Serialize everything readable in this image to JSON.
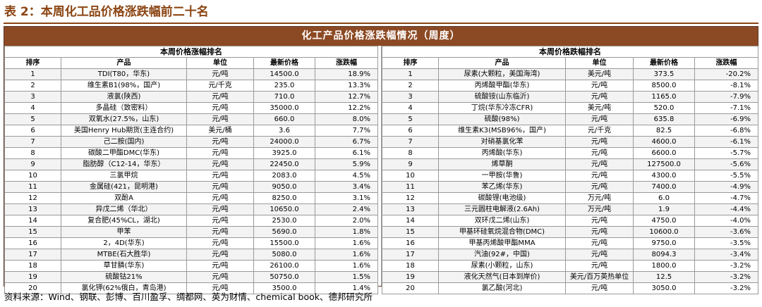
{
  "caption": "表 2：本周化工品价格涨跌幅前二十名",
  "table_title": "化工产品价格涨跌幅情况（周度）",
  "left": {
    "subtitle": "本周价格涨幅排名",
    "headers": [
      "排序",
      "产品",
      "单位",
      "最新价格",
      "涨跌幅"
    ],
    "rows": [
      [
        "1",
        "TDI(T80，华东)",
        "元/吨",
        "14500.0",
        "18.9%"
      ],
      [
        "2",
        "维生素B1(98%，国产)",
        "元/千克",
        "235.0",
        "13.3%"
      ],
      [
        "3",
        "液氯(陕西)",
        "元/吨",
        "710.0",
        "12.7%"
      ],
      [
        "4",
        "多晶硅（致密料）",
        "元/吨",
        "35000.0",
        "12.2%"
      ],
      [
        "5",
        "双氧水(27.5%，山东)",
        "元/吨",
        "660.0",
        "8.0%"
      ],
      [
        "6",
        "美国Henry Hub期货(主连合约)",
        "美元/桶",
        "3.6",
        "7.7%"
      ],
      [
        "7",
        "己二胺(国内)",
        "元/吨",
        "24000.0",
        "6.7%"
      ],
      [
        "8",
        "碳酸二甲酯DMC(华东)",
        "元/吨",
        "3925.0",
        "6.1%"
      ],
      [
        "9",
        "脂肪醇（C12-14，华东）",
        "元/吨",
        "22450.0",
        "5.9%"
      ],
      [
        "10",
        "三氯甲烷",
        "元/吨",
        "2083.0",
        "4.5%"
      ],
      [
        "11",
        "金属硅(421，昆明港)",
        "元/吨",
        "9050.0",
        "3.4%"
      ],
      [
        "12",
        "双酚A",
        "元/吨",
        "8250.0",
        "3.1%"
      ],
      [
        "13",
        "异戊二烯（华北）",
        "元/吨",
        "10650.0",
        "2.4%"
      ],
      [
        "14",
        "复合肥(45%CL，湖北)",
        "元/吨",
        "2530.0",
        "2.0%"
      ],
      [
        "15",
        "甲苯",
        "元/吨",
        "5690.0",
        "1.8%"
      ],
      [
        "16",
        "2，4D(华东)",
        "元/吨",
        "15500.0",
        "1.6%"
      ],
      [
        "17",
        "MTBE(石大胜华)",
        "元/吨",
        "5080.0",
        "1.6%"
      ],
      [
        "18",
        "草甘膦(华东)",
        "元/吨",
        "26100.0",
        "1.6%"
      ],
      [
        "19",
        "硫酸钴21%",
        "元/吨",
        "50750.0",
        "1.5%"
      ],
      [
        "20",
        "氯化钾(62%俄白，青岛港)",
        "元/吨",
        "3500.0",
        "1.4%"
      ]
    ]
  },
  "right": {
    "subtitle": "本周价格跌幅排名",
    "headers": [
      "排序",
      "产品",
      "单位",
      "最新价格",
      "涨跌幅"
    ],
    "rows": [
      [
        "1",
        "尿素(大颗粒，美国海湾)",
        "美元/吨",
        "373.5",
        "-20.2%"
      ],
      [
        "2",
        "丙烯酸甲酯(华东)",
        "元/吨",
        "8500.0",
        "-8.1%"
      ],
      [
        "3",
        "硫酸铵(山东临沂)",
        "元/吨",
        "1165.0",
        "-7.9%"
      ],
      [
        "4",
        "丁烷(华东冷冻CFR)",
        "美元/吨",
        "520.0",
        "-7.1%"
      ],
      [
        "5",
        "硫酸(98%)",
        "元/吨",
        "635.8",
        "-6.9%"
      ],
      [
        "6",
        "维生素K3(MSB96%，国产)",
        "元/千克",
        "82.5",
        "-6.8%"
      ],
      [
        "7",
        "对硝基氯化苯",
        "元/吨",
        "4600.0",
        "-6.1%"
      ],
      [
        "8",
        "丙烯酸(华东)",
        "元/吨",
        "6600.0",
        "-5.7%"
      ],
      [
        "9",
        "烯草酮",
        "元/吨",
        "127500.0",
        "-5.6%"
      ],
      [
        "10",
        "一甲胺(华鲁)",
        "元/吨",
        "4300.0",
        "-5.5%"
      ],
      [
        "11",
        "苯乙烯(华东)",
        "元/吨",
        "7400.0",
        "-4.9%"
      ],
      [
        "12",
        "碳酸锂(电池级)",
        "万元/吨",
        "6.0",
        "-4.7%"
      ],
      [
        "13",
        "三元圆柱电解液(2.6Ah)",
        "万元/吨",
        "1.9",
        "-4.4%"
      ],
      [
        "14",
        "双环戊二烯(山东)",
        "元/吨",
        "4750.0",
        "-4.0%"
      ],
      [
        "15",
        "甲基环硅氧烷混合物(DMC)",
        "元/吨",
        "10600.0",
        "-3.6%"
      ],
      [
        "16",
        "甲基丙烯酸甲酯MMA",
        "元/吨",
        "9750.0",
        "-3.5%"
      ],
      [
        "17",
        "汽油(92#，中国)",
        "元/吨",
        "8094.3",
        "-3.4%"
      ],
      [
        "18",
        "尿素(小颗粒，山东)",
        "元/吨",
        "1800.0",
        "-3.2%"
      ],
      [
        "19",
        "液化天然气(日本到岸价)",
        "美元/百万英热单位",
        "12.5",
        "-3.2%"
      ],
      [
        "20",
        "氯乙酸(河北)",
        "元/吨",
        "3050.0",
        "-3.2%"
      ]
    ]
  },
  "source": "资料来源：Wind、钢联、彭博、百川盈孚、绸都网、英为财情、chemical book、德邦研究所"
}
